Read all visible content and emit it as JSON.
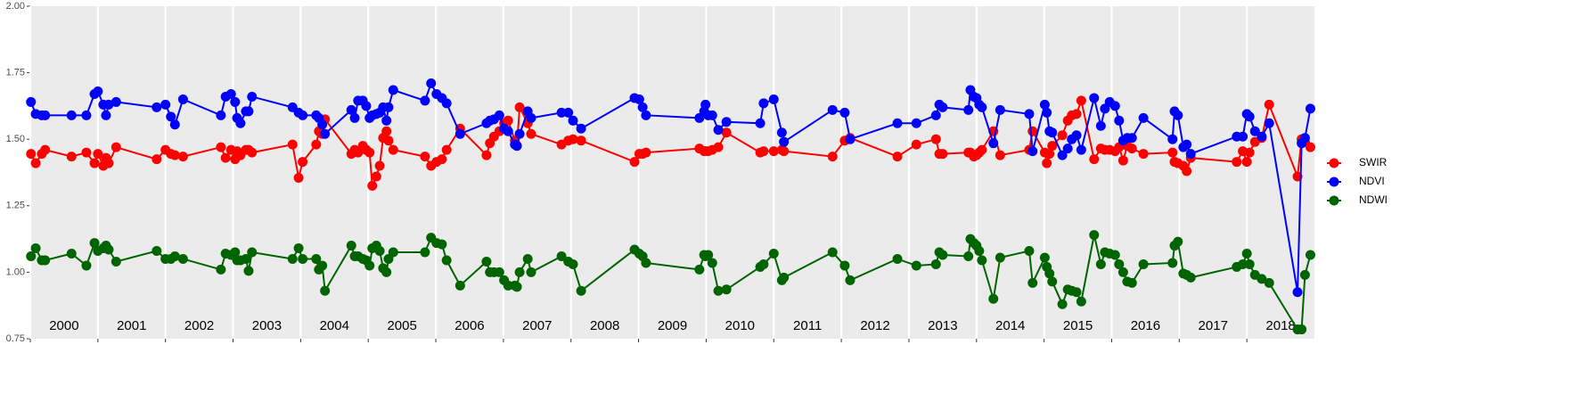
{
  "chart_data": {
    "type": "line",
    "x": [
      2000.01,
      2000.08,
      2000.17,
      2000.22,
      2000.61,
      2000.83,
      2000.95,
      2001.0,
      2001.08,
      2001.12,
      2001.16,
      2001.27,
      2001.87,
      2002.0,
      2002.08,
      2002.14,
      2002.26,
      2002.82,
      2002.89,
      2002.97,
      2003.03,
      2003.06,
      2003.11,
      2003.19,
      2003.23,
      2003.28,
      2003.88,
      2003.97,
      2004.03,
      2004.23,
      2004.27,
      2004.32,
      2004.36,
      2004.75,
      2004.8,
      2004.85,
      2004.92,
      2004.97,
      2005.02,
      2005.06,
      2005.12,
      2005.17,
      2005.22,
      2005.27,
      2005.3,
      2005.37,
      2005.84,
      2005.93,
      2006.01,
      2006.09,
      2006.16,
      2006.36,
      2006.75,
      2006.8,
      2006.86,
      2006.94,
      2007.01,
      2007.07,
      2007.17,
      2007.2,
      2007.24,
      2007.36,
      2007.41,
      2007.86,
      2007.96,
      2008.03,
      2008.15,
      2008.94,
      2009.01,
      2009.06,
      2009.11,
      2009.9,
      2009.97,
      2009.99,
      2010.03,
      2010.09,
      2010.18,
      2010.3,
      2010.8,
      2010.85,
      2011.0,
      2011.12,
      2011.15,
      2011.87,
      2012.05,
      2012.13,
      2012.83,
      2013.11,
      2013.4,
      2013.45,
      2013.5,
      2013.88,
      2013.91,
      2013.96,
      2014.0,
      2014.04,
      2014.08,
      2014.25,
      2014.35,
      2014.78,
      2014.83,
      2015.01,
      2015.04,
      2015.08,
      2015.12,
      2015.27,
      2015.35,
      2015.41,
      2015.48,
      2015.55,
      2015.74,
      2015.84,
      2015.9,
      2015.97,
      2016.05,
      2016.11,
      2016.17,
      2016.23,
      2016.3,
      2016.47,
      2016.9,
      2016.93,
      2016.98,
      2017.06,
      2017.11,
      2017.17,
      2017.85,
      2017.94,
      2018.0,
      2018.04,
      2018.12,
      2018.22,
      2018.33,
      2018.75,
      2018.81,
      2018.86,
      2018.94
    ],
    "series": [
      {
        "name": "SWIR",
        "color": "#ff0000",
        "values": [
          1.445,
          1.41,
          1.445,
          1.46,
          1.435,
          1.45,
          1.41,
          1.445,
          1.4,
          1.43,
          1.41,
          1.47,
          1.425,
          1.46,
          1.445,
          1.44,
          1.435,
          1.47,
          1.43,
          1.46,
          1.425,
          1.455,
          1.44,
          1.46,
          1.46,
          1.45,
          1.48,
          1.355,
          1.415,
          1.48,
          1.53,
          1.52,
          1.575,
          1.445,
          1.46,
          1.45,
          1.475,
          1.46,
          1.45,
          1.325,
          1.36,
          1.4,
          1.505,
          1.53,
          1.495,
          1.46,
          1.435,
          1.4,
          1.415,
          1.425,
          1.46,
          1.54,
          1.44,
          1.485,
          1.51,
          1.53,
          1.56,
          1.57,
          1.495,
          1.475,
          1.62,
          1.56,
          1.52,
          1.48,
          1.495,
          1.5,
          1.495,
          1.415,
          1.445,
          1.445,
          1.45,
          1.465,
          1.455,
          1.455,
          1.455,
          1.46,
          1.47,
          1.525,
          1.45,
          1.455,
          1.455,
          1.46,
          1.455,
          1.435,
          1.495,
          1.505,
          1.435,
          1.48,
          1.5,
          1.445,
          1.445,
          1.45,
          1.45,
          1.435,
          1.44,
          1.45,
          1.46,
          1.53,
          1.44,
          1.46,
          1.53,
          1.45,
          1.41,
          1.445,
          1.475,
          1.515,
          1.57,
          1.59,
          1.595,
          1.645,
          1.425,
          1.465,
          1.46,
          1.46,
          1.455,
          1.47,
          1.42,
          1.475,
          1.465,
          1.445,
          1.45,
          1.415,
          1.41,
          1.4,
          1.38,
          1.43,
          1.415,
          1.455,
          1.415,
          1.45,
          1.49,
          1.505,
          1.63,
          1.36,
          1.5,
          1.49,
          1.47
        ]
      },
      {
        "name": "NDVI",
        "color": "#0000ff",
        "values": [
          1.64,
          1.595,
          1.59,
          1.59,
          1.59,
          1.59,
          1.67,
          1.68,
          1.63,
          1.59,
          1.63,
          1.64,
          1.62,
          1.63,
          1.585,
          1.555,
          1.65,
          1.59,
          1.66,
          1.67,
          1.64,
          1.58,
          1.56,
          1.605,
          1.605,
          1.66,
          1.62,
          1.6,
          1.59,
          1.59,
          1.58,
          1.555,
          1.52,
          1.61,
          1.58,
          1.645,
          1.645,
          1.625,
          1.58,
          1.59,
          1.595,
          1.6,
          1.62,
          1.57,
          1.62,
          1.685,
          1.645,
          1.71,
          1.67,
          1.655,
          1.635,
          1.52,
          1.56,
          1.57,
          1.575,
          1.59,
          1.54,
          1.53,
          1.48,
          1.475,
          1.52,
          1.605,
          1.58,
          1.6,
          1.6,
          1.57,
          1.54,
          1.655,
          1.65,
          1.62,
          1.59,
          1.58,
          1.605,
          1.63,
          1.59,
          1.59,
          1.535,
          1.565,
          1.56,
          1.635,
          1.65,
          1.525,
          1.49,
          1.61,
          1.6,
          1.5,
          1.56,
          1.56,
          1.59,
          1.63,
          1.62,
          1.61,
          1.685,
          1.66,
          1.655,
          1.63,
          1.62,
          1.485,
          1.61,
          1.595,
          1.455,
          1.63,
          1.6,
          1.53,
          1.525,
          1.44,
          1.465,
          1.5,
          1.515,
          1.46,
          1.655,
          1.55,
          1.615,
          1.64,
          1.625,
          1.57,
          1.495,
          1.505,
          1.505,
          1.58,
          1.5,
          1.605,
          1.59,
          1.47,
          1.48,
          1.445,
          1.51,
          1.51,
          1.595,
          1.585,
          1.53,
          1.51,
          1.56,
          0.925,
          1.485,
          1.505,
          1.615
        ]
      },
      {
        "name": "NDWI",
        "color": "#006400",
        "values": [
          1.06,
          1.09,
          1.045,
          1.045,
          1.07,
          1.025,
          1.11,
          1.08,
          1.09,
          1.1,
          1.085,
          1.04,
          1.08,
          1.05,
          1.05,
          1.06,
          1.05,
          1.01,
          1.07,
          1.065,
          1.075,
          1.045,
          1.045,
          1.05,
          1.005,
          1.075,
          1.05,
          1.09,
          1.05,
          1.05,
          1.01,
          1.025,
          0.93,
          1.1,
          1.06,
          1.06,
          1.05,
          1.045,
          1.025,
          1.09,
          1.1,
          1.08,
          1.015,
          1.0,
          1.05,
          1.075,
          1.075,
          1.13,
          1.11,
          1.105,
          1.045,
          0.95,
          1.04,
          1.0,
          1.0,
          1.0,
          0.97,
          0.95,
          0.95,
          0.945,
          1.0,
          1.05,
          1.0,
          1.06,
          1.04,
          1.03,
          0.93,
          1.085,
          1.07,
          1.06,
          1.035,
          1.01,
          1.065,
          1.06,
          1.065,
          1.035,
          0.93,
          0.935,
          1.02,
          1.03,
          1.07,
          0.97,
          0.98,
          1.075,
          1.025,
          0.97,
          1.05,
          1.025,
          1.03,
          1.075,
          1.065,
          1.06,
          1.125,
          1.11,
          1.1,
          1.08,
          1.045,
          0.9,
          1.055,
          1.08,
          0.96,
          1.055,
          1.02,
          0.995,
          0.965,
          0.88,
          0.935,
          0.93,
          0.925,
          0.89,
          1.14,
          1.03,
          1.075,
          1.07,
          1.065,
          1.03,
          1.0,
          0.965,
          0.96,
          1.03,
          1.035,
          1.1,
          1.115,
          0.995,
          0.99,
          0.98,
          1.02,
          1.03,
          1.07,
          1.03,
          0.99,
          0.975,
          0.96,
          0.785,
          0.785,
          0.99,
          1.065
        ]
      }
    ],
    "xlim": [
      2000,
      2019
    ],
    "xticks": [
      {
        "value": 2000,
        "label": "2000"
      },
      {
        "value": 2001,
        "label": "2001"
      },
      {
        "value": 2002,
        "label": "2002"
      },
      {
        "value": 2003,
        "label": "2003"
      },
      {
        "value": 2004,
        "label": "2004"
      },
      {
        "value": 2005,
        "label": "2005"
      },
      {
        "value": 2006,
        "label": "2006"
      },
      {
        "value": 2007,
        "label": "2007"
      },
      {
        "value": 2008,
        "label": "2008"
      },
      {
        "value": 2009,
        "label": "2009"
      },
      {
        "value": 2010,
        "label": "2010"
      },
      {
        "value": 2011,
        "label": "2011"
      },
      {
        "value": 2012,
        "label": "2012"
      },
      {
        "value": 2013,
        "label": "2013"
      },
      {
        "value": 2014,
        "label": "2014"
      },
      {
        "value": 2015,
        "label": "2015"
      },
      {
        "value": 2016,
        "label": "2016"
      },
      {
        "value": 2017,
        "label": "2017"
      },
      {
        "value": 2018,
        "label": "2018"
      }
    ],
    "ylim": [
      0.75,
      2.0
    ],
    "yticks": [
      {
        "value": 0.75,
        "label": "0.75"
      },
      {
        "value": 1.0,
        "label": "1.00"
      },
      {
        "value": 1.25,
        "label": "1.25"
      },
      {
        "value": 1.5,
        "label": "1.50"
      },
      {
        "value": 1.75,
        "label": "1.75"
      },
      {
        "value": 2.0,
        "label": "2.00"
      }
    ],
    "grid": true,
    "legend": "right"
  }
}
